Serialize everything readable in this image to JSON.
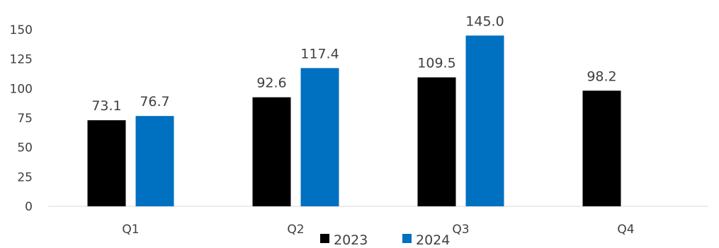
{
  "chart_data": {
    "type": "bar",
    "title": "",
    "xlabel": "",
    "ylabel": "",
    "categories": [
      "Q1",
      "Q2",
      "Q3",
      "Q4"
    ],
    "series": [
      {
        "name": "2023",
        "values": [
          73.1,
          92.6,
          109.5,
          98.2
        ],
        "color": "#000000"
      },
      {
        "name": "2024",
        "values": [
          76.7,
          117.4,
          145.0,
          null
        ],
        "color": "#0070C0"
      }
    ],
    "ylim": [
      0,
      150
    ],
    "yticks": [
      0,
      25,
      50,
      75,
      100,
      125,
      150
    ],
    "grid": false,
    "legend_position": "bottom",
    "data_labels": true,
    "data_label_decimals": 1
  }
}
